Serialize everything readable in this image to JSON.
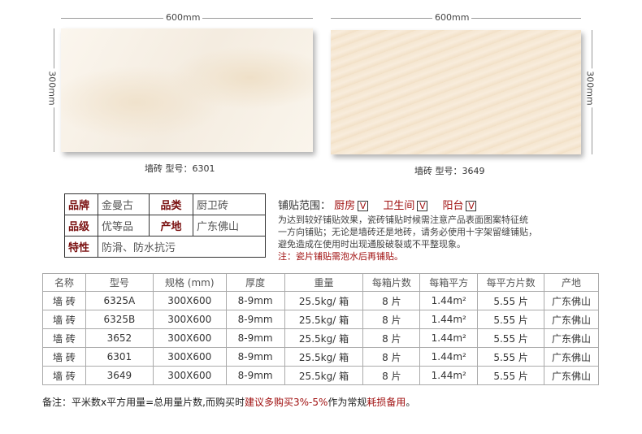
{
  "tiles": [
    {
      "width_label": "600mm",
      "height_label": "300mm",
      "caption": "墙砖  型号：6301"
    },
    {
      "width_label": "600mm",
      "height_label": "300mm",
      "caption": "墙砖  型号：3649"
    }
  ],
  "spec": {
    "rows": [
      [
        {
          "k": "品牌",
          "v": "金曼古"
        },
        {
          "k": "品类",
          "v": "厨卫砖"
        }
      ],
      [
        {
          "k": "品级",
          "v": "优等品"
        },
        {
          "k": "产地",
          "v": "广东佛山"
        }
      ],
      [
        {
          "k": "特性",
          "v": "防滑、防水抗污"
        }
      ]
    ]
  },
  "scope": {
    "title": "铺贴范围：",
    "areas": [
      "厨房",
      "卫生间",
      "阳台"
    ],
    "check": "V",
    "lines": [
      "为达到较好铺贴效果，瓷砖铺贴时候需注意产品表面图案特征统",
      "一方向铺贴；无论是墙砖还是地砖，请务必使用十字架留缝铺贴，",
      "避免造成在使用时出现通股破裂或不平整现象。"
    ],
    "note": "注：瓷片铺贴需泡水后再铺贴。"
  },
  "table": {
    "headers": [
      "名称",
      "型号",
      "规格 (mm)",
      "厚度",
      "重量",
      "每箱片数",
      "每箱平方",
      "每平方片数",
      "产地"
    ],
    "rows": [
      [
        "墙 砖",
        "6325A",
        "300X600",
        "8-9mm",
        "25.5kg/ 箱",
        "8 片",
        "1.44m²",
        "5.55 片",
        "广东佛山"
      ],
      [
        "墙 砖",
        "6325B",
        "300X600",
        "8-9mm",
        "25.5kg/ 箱",
        "8 片",
        "1.44m²",
        "5.55 片",
        "广东佛山"
      ],
      [
        "墙 砖",
        "3652",
        "300X600",
        "8-9mm",
        "25.5kg/ 箱",
        "8 片",
        "1.44m²",
        "5.55 片",
        "广东佛山"
      ],
      [
        "墙 砖",
        "6301",
        "300X600",
        "8-9mm",
        "25.5kg/ 箱",
        "8 片",
        "1.44m²",
        "5.55 片",
        "广东佛山"
      ],
      [
        "墙 砖",
        "3649",
        "300X600",
        "8-9mm",
        "25.5kg/ 箱",
        "8 片",
        "1.44m²",
        "5.55 片",
        "广东佛山"
      ]
    ]
  },
  "footer": {
    "a": "备注：平米数x平方用量=总用量片数,而购买时",
    "b": "建议多购买3%-5%",
    "c": "作为常规",
    "d": "耗损备用",
    "e": "。"
  },
  "colors": {
    "accent": "#a01010",
    "label": "#7a1010"
  }
}
